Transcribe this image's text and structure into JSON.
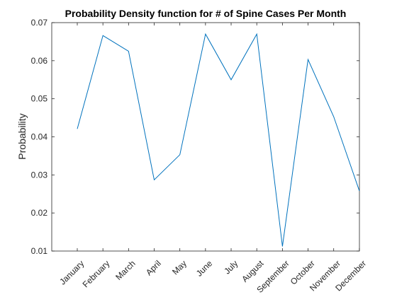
{
  "chart_data": {
    "type": "line",
    "title": "Probability Density function for # of Spine Cases Per Month",
    "xlabel": "",
    "ylabel": "Probability",
    "categories": [
      "January",
      "February",
      "March",
      "April",
      "May",
      "June",
      "July",
      "August",
      "September",
      "October",
      "November",
      "December"
    ],
    "values": [
      0.0421,
      0.0666,
      0.0625,
      0.0287,
      0.0353,
      0.067,
      0.055,
      0.067,
      0.0112,
      0.0603,
      0.0453,
      0.0258
    ],
    "ylim": [
      0.01,
      0.07
    ],
    "yticks": [
      "0.01",
      "0.02",
      "0.03",
      "0.04",
      "0.05",
      "0.06",
      "0.07"
    ],
    "grid": false,
    "line_color": "#0072BD"
  }
}
